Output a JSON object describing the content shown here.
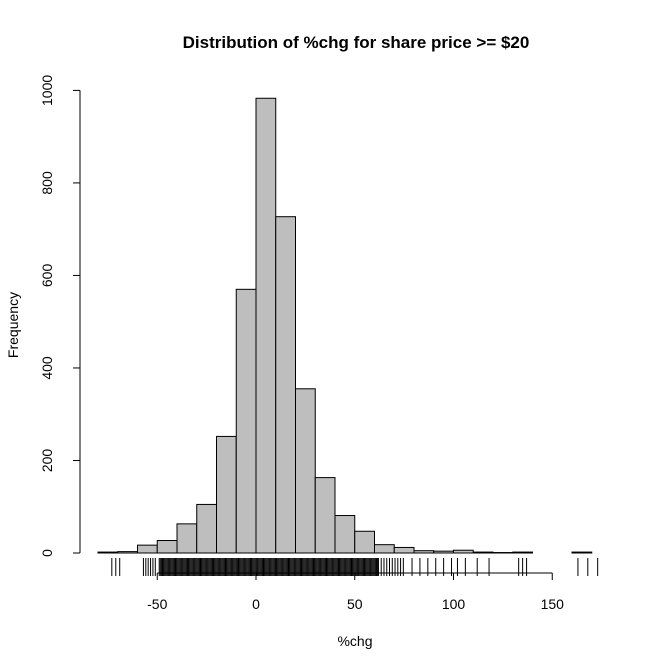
{
  "chart_data": {
    "type": "bar",
    "subtype": "histogram",
    "title": "Distribution of %chg for share price >= $20",
    "xlabel": "%chg",
    "ylabel": "Frequency",
    "bin_width": 10,
    "bins": [
      {
        "start": -80,
        "end": -70,
        "count": 2
      },
      {
        "start": -70,
        "end": -60,
        "count": 3
      },
      {
        "start": -60,
        "end": -50,
        "count": 17
      },
      {
        "start": -50,
        "end": -40,
        "count": 27
      },
      {
        "start": -40,
        "end": -30,
        "count": 63
      },
      {
        "start": -30,
        "end": -20,
        "count": 105
      },
      {
        "start": -20,
        "end": -10,
        "count": 252
      },
      {
        "start": -10,
        "end": 0,
        "count": 570
      },
      {
        "start": 0,
        "end": 10,
        "count": 983
      },
      {
        "start": 10,
        "end": 20,
        "count": 727
      },
      {
        "start": 20,
        "end": 30,
        "count": 355
      },
      {
        "start": 30,
        "end": 40,
        "count": 163
      },
      {
        "start": 40,
        "end": 50,
        "count": 81
      },
      {
        "start": 50,
        "end": 60,
        "count": 47
      },
      {
        "start": 60,
        "end": 70,
        "count": 18
      },
      {
        "start": 70,
        "end": 80,
        "count": 12
      },
      {
        "start": 80,
        "end": 90,
        "count": 5
      },
      {
        "start": 90,
        "end": 100,
        "count": 4
      },
      {
        "start": 100,
        "end": 110,
        "count": 6
      },
      {
        "start": 110,
        "end": 120,
        "count": 2
      },
      {
        "start": 120,
        "end": 130,
        "count": 1
      },
      {
        "start": 130,
        "end": 140,
        "count": 2
      },
      {
        "start": 140,
        "end": 150,
        "count": 0
      },
      {
        "start": 150,
        "end": 160,
        "count": 0
      },
      {
        "start": 160,
        "end": 170,
        "count": 2
      },
      {
        "start": 170,
        "end": 180,
        "count": 0
      }
    ],
    "xlim": [
      -80,
      180
    ],
    "ylim": [
      0,
      1000
    ],
    "x_ticks": [
      -50,
      0,
      50,
      100,
      150
    ],
    "y_ticks": [
      0,
      200,
      400,
      600,
      800,
      1000
    ],
    "rug": true,
    "bar_fill": "#bebebe",
    "bar_stroke": "#000000"
  }
}
